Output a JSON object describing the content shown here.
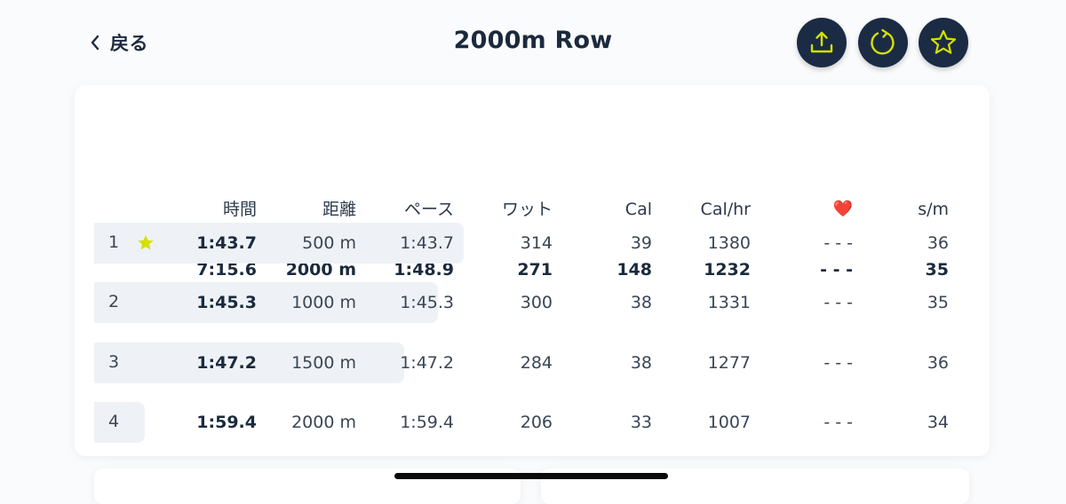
{
  "header": {
    "back_label": "戻る",
    "title": "2000m Row"
  },
  "columns": [
    "時間",
    "距離",
    "ペース",
    "ワット",
    "Cal",
    "Cal/hr",
    "❤️",
    "s/m"
  ],
  "summary": [
    "7:15.6",
    "2000 m",
    "1:48.9",
    "271",
    "148",
    "1232",
    "- - -",
    "35"
  ],
  "splits": [
    {
      "index": "1",
      "best": true,
      "progress": 0.87,
      "values": [
        "1:43.7",
        "500 m",
        "1:43.7",
        "314",
        "39",
        "1380",
        "- - -",
        "36"
      ]
    },
    {
      "index": "2",
      "best": false,
      "progress": 0.81,
      "values": [
        "1:45.3",
        "1000 m",
        "1:45.3",
        "300",
        "38",
        "1331",
        "- - -",
        "35"
      ]
    },
    {
      "index": "3",
      "best": false,
      "progress": 0.73,
      "values": [
        "1:47.2",
        "1500 m",
        "1:47.2",
        "284",
        "38",
        "1277",
        "- - -",
        "36"
      ]
    },
    {
      "index": "4",
      "best": false,
      "progress": 0.12,
      "values": [
        "1:59.4",
        "2000 m",
        "1:59.4",
        "206",
        "33",
        "1007",
        "- - -",
        "34"
      ]
    }
  ],
  "icons": {
    "back": "chevron-left-icon",
    "share": "share-upload-icon",
    "redo": "refresh-icon",
    "favorite": "star-icon",
    "best_split": "star-icon",
    "heart": "heart-icon"
  },
  "colors": {
    "button_bg": "#1b2b44",
    "accent": "#d4e000",
    "heart": "#e8432e",
    "bar": "#eef2f6"
  }
}
